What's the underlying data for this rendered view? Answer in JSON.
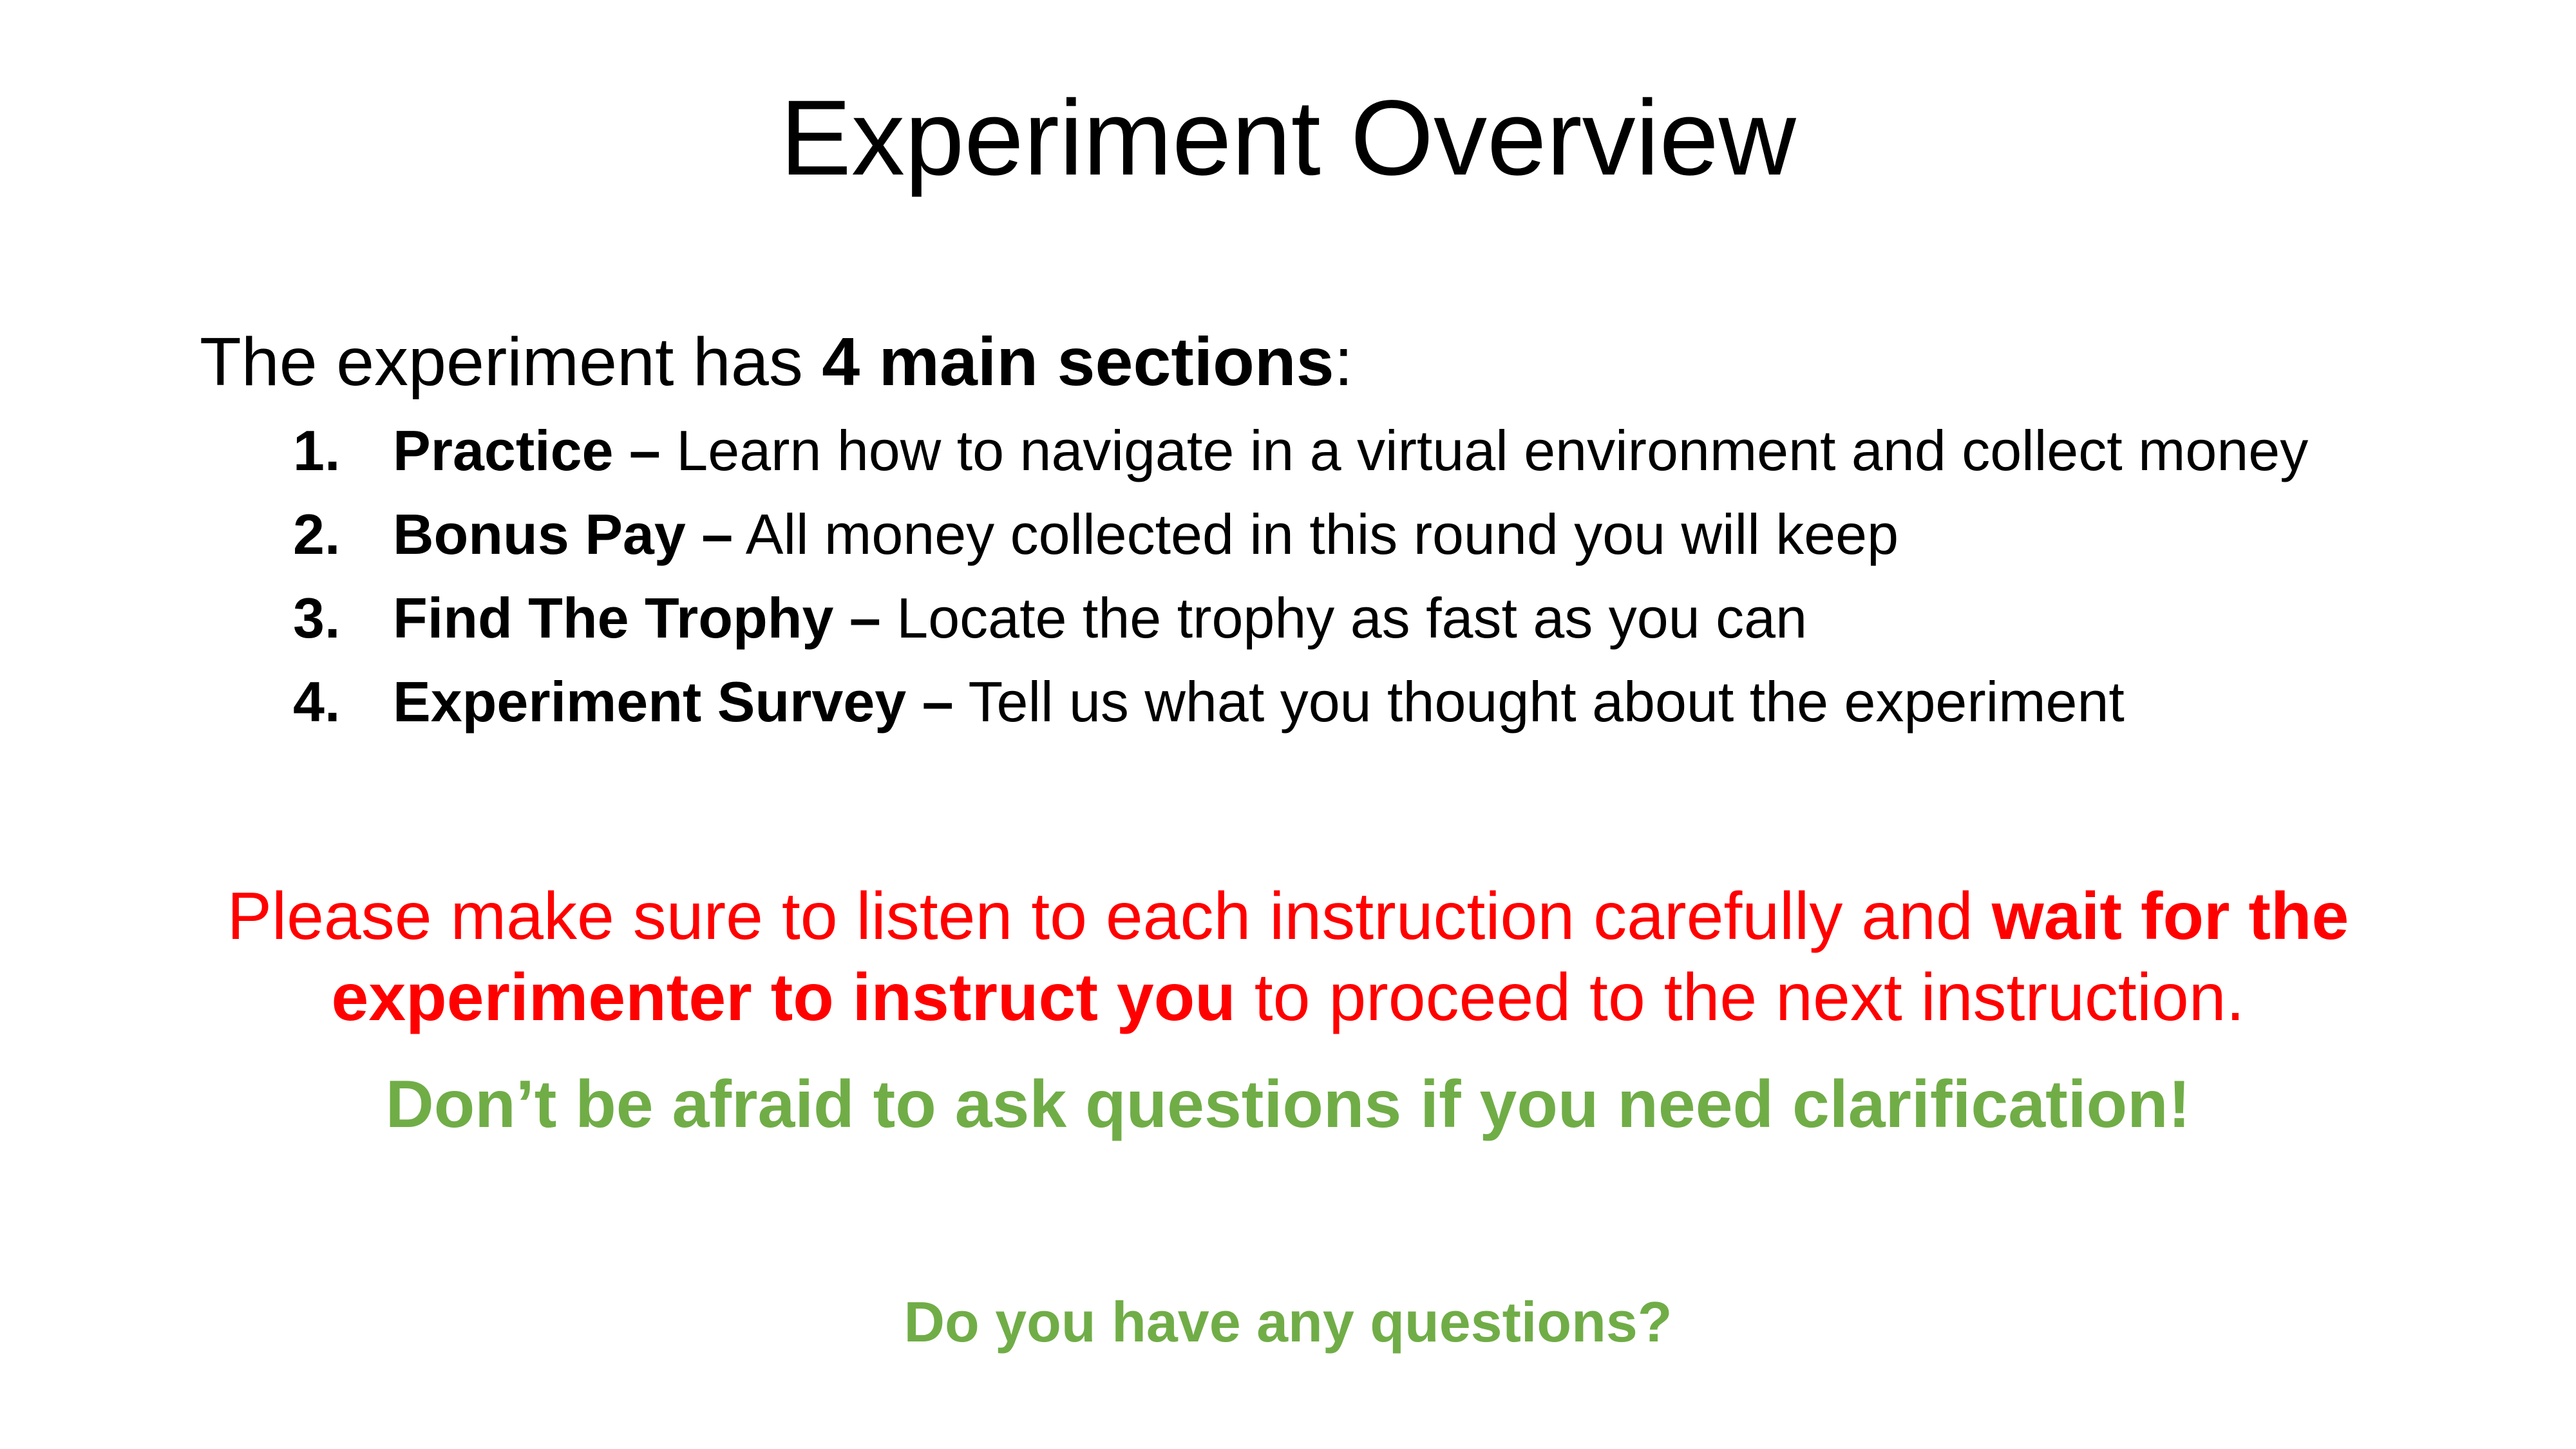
{
  "title": "Experiment Overview",
  "intro": {
    "prefix": "The experiment has ",
    "emphasis": "4 main sections",
    "suffix": ":"
  },
  "sections": [
    {
      "number": "1.",
      "name": "Practice –",
      "description": " Learn how to navigate in a virtual environment and collect money"
    },
    {
      "number": "2.",
      "name": "Bonus Pay –",
      "description": " All money collected in this round you will keep"
    },
    {
      "number": "3.",
      "name": "Find The Trophy –",
      "description": " Locate the trophy as fast as you can"
    },
    {
      "number": "4.",
      "name": "Experiment Survey –",
      "description": " Tell us what you thought about the experiment"
    }
  ],
  "instruction_note": {
    "part1": "Please make sure to listen to each instruction carefully and ",
    "emphasis_line1": "wait for the",
    "emphasis_line2": "experimenter to instruct you",
    "part2": " to proceed to the next instruction."
  },
  "encouragement": "Don’t be afraid to ask questions if you need clarification!",
  "closing_question": "Do you have any questions?",
  "colors": {
    "text": "#000000",
    "warning": "#ff0000",
    "highlight_green": "#70ad47",
    "background": "#ffffff"
  }
}
